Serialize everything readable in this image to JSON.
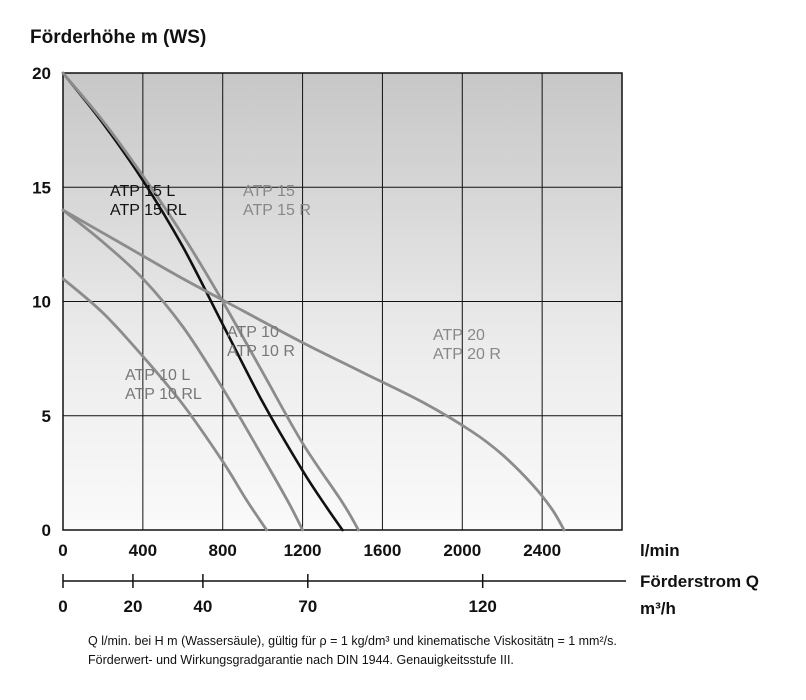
{
  "chart_data": {
    "type": "line",
    "title": "",
    "ylabel": "Förderhöhe m (WS)",
    "xlabel": "Förderstrom Q",
    "x_unit": "l/min",
    "x2_unit": "m³/h",
    "xlim": [
      0,
      2800
    ],
    "ylim": [
      0,
      20
    ],
    "x_ticks": [
      {
        "value": 0,
        "label": "0"
      },
      {
        "value": 400,
        "label": "400"
      },
      {
        "value": 800,
        "label": "800"
      },
      {
        "value": 1200,
        "label": "1200"
      },
      {
        "value": 1600,
        "label": "1600"
      },
      {
        "value": 2000,
        "label": "2000"
      },
      {
        "value": 2400,
        "label": "2400"
      }
    ],
    "x2_ticks": [
      {
        "value": 0,
        "label": "0"
      },
      {
        "value": 20,
        "label": "20"
      },
      {
        "value": 40,
        "label": "40"
      },
      {
        "value": 70,
        "label": "70"
      },
      {
        "value": 120,
        "label": "120"
      }
    ],
    "y_ticks": [
      {
        "value": 0,
        "label": "0"
      },
      {
        "value": 5,
        "label": "5"
      },
      {
        "value": 10,
        "label": "10"
      },
      {
        "value": 15,
        "label": "15"
      },
      {
        "value": 20,
        "label": "20"
      }
    ],
    "grid": true,
    "series": [
      {
        "label_lines": [
          "ATP 10 L",
          "ATP 10 RL"
        ],
        "color": "#8c8c8c",
        "points": [
          [
            0,
            11
          ],
          [
            200,
            9.5
          ],
          [
            400,
            7.6
          ],
          [
            600,
            5.5
          ],
          [
            800,
            3.0
          ],
          [
            920,
            1.3
          ],
          [
            1020,
            0
          ]
        ]
      },
      {
        "label_lines": [
          "ATP 10",
          "ATP 10 R"
        ],
        "color": "#8c8c8c",
        "points": [
          [
            0,
            14
          ],
          [
            200,
            12.6
          ],
          [
            400,
            11.0
          ],
          [
            600,
            8.9
          ],
          [
            800,
            6.2
          ],
          [
            1000,
            3.2
          ],
          [
            1130,
            1.2
          ],
          [
            1200,
            0
          ]
        ]
      },
      {
        "label_lines": [
          "ATP 15 L",
          "ATP 15 RL"
        ],
        "color": "#111111",
        "points": [
          [
            0,
            20
          ],
          [
            200,
            17.8
          ],
          [
            400,
            15.3
          ],
          [
            600,
            12.4
          ],
          [
            800,
            9.0
          ],
          [
            1000,
            5.6
          ],
          [
            1200,
            2.6
          ],
          [
            1320,
            1.0
          ],
          [
            1400,
            0
          ]
        ]
      },
      {
        "label_lines": [
          "ATP 15",
          "ATP 15 R"
        ],
        "color": "#8c8c8c",
        "points": [
          [
            0,
            20
          ],
          [
            200,
            17.9
          ],
          [
            400,
            15.5
          ],
          [
            600,
            12.9
          ],
          [
            800,
            10.0
          ],
          [
            1000,
            6.9
          ],
          [
            1200,
            3.8
          ],
          [
            1400,
            1.2
          ],
          [
            1480,
            0
          ]
        ]
      },
      {
        "label_lines": [
          "ATP 20",
          "ATP 20 R"
        ],
        "color": "#8c8c8c",
        "points": [
          [
            0,
            14
          ],
          [
            300,
            12.5
          ],
          [
            600,
            11.0
          ],
          [
            900,
            9.6
          ],
          [
            1200,
            8.2
          ],
          [
            1500,
            6.9
          ],
          [
            1800,
            5.6
          ],
          [
            2050,
            4.3
          ],
          [
            2200,
            3.3
          ],
          [
            2350,
            2.0
          ],
          [
            2450,
            0.9
          ],
          [
            2510,
            0
          ]
        ]
      }
    ]
  },
  "footnote": {
    "line1": "Q l/min. bei H m (Wassersäule), gültig für ρ = 1 kg/dm³ und kinematische Viskositätη = 1 mm²/s.",
    "line2": "Förderwert- und Wirkungsgradgarantie nach DIN 1944. Genauigkeitsstufe III."
  }
}
